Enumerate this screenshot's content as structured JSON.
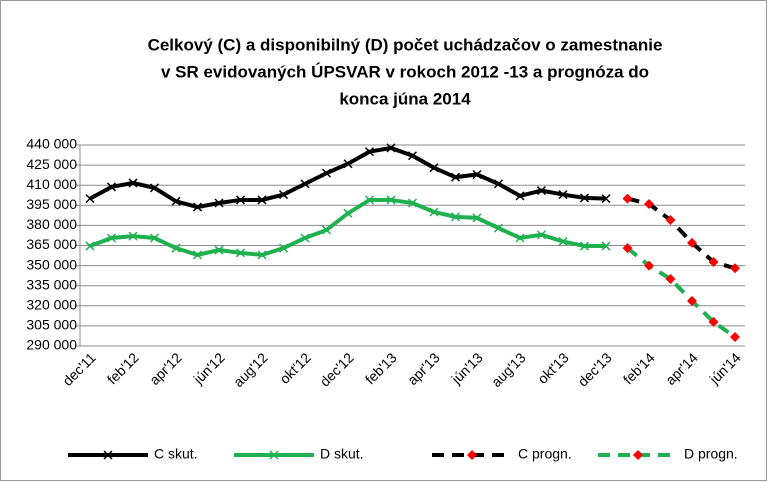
{
  "chart_data": {
    "type": "line",
    "title": [
      "Celkový (C) a disponibilný (D) počet uchádzačov  o zamestnanie",
      "v SR evidovaných ÚPSVAR v rokoch 2012  -13 a prognóza do",
      "konca júna 2014"
    ],
    "categories": [
      "dec'11",
      null,
      "feb'12",
      null,
      "apr'12",
      null,
      "jún'12",
      null,
      "aug'12",
      null,
      "okt'12",
      null,
      "dec'12",
      null,
      "feb'13",
      null,
      "apr'13",
      null,
      "jún'13",
      null,
      "aug'13",
      null,
      "okt'13",
      null,
      "dec'13",
      null,
      "feb'14",
      null,
      "apr'14",
      null,
      "jún'14"
    ],
    "series": [
      {
        "name": "C skut.",
        "color": "#000000",
        "marker": "x",
        "marker_color": "#000000",
        "dashed": false,
        "values": [
          400000,
          408700,
          411700,
          408000,
          398000,
          393700,
          396700,
          399000,
          399000,
          403000,
          411000,
          419000,
          426000,
          435000,
          437800,
          432000,
          423000,
          416000,
          418000,
          411000,
          402000,
          406000,
          403000,
          400500,
          400000,
          null,
          null,
          null,
          null,
          null,
          null
        ]
      },
      {
        "name": "D skut.",
        "color": "#1fb050",
        "marker": "x",
        "marker_color": "#1fb050",
        "dashed": false,
        "values": [
          364600,
          370600,
          372000,
          370600,
          363000,
          358000,
          361600,
          359500,
          358000,
          363000,
          370600,
          376600,
          389000,
          399000,
          399000,
          396700,
          390000,
          386400,
          385600,
          378000,
          370600,
          373000,
          368000,
          364600,
          364600,
          null,
          null,
          null,
          null,
          null,
          null
        ]
      },
      {
        "name": "C progn.",
        "color": "#000000",
        "marker": "diamond",
        "marker_color": "#ff0000",
        "dashed": true,
        "values": [
          null,
          null,
          null,
          null,
          null,
          null,
          null,
          null,
          null,
          null,
          null,
          null,
          null,
          null,
          null,
          null,
          null,
          null,
          null,
          null,
          null,
          null,
          null,
          null,
          null,
          400000,
          396000,
          384000,
          367000,
          352700,
          348000
        ]
      },
      {
        "name": "D progn.",
        "color": "#1fb050",
        "marker": "diamond",
        "marker_color": "#ff0000",
        "dashed": true,
        "values": [
          null,
          null,
          null,
          null,
          null,
          null,
          null,
          null,
          null,
          null,
          null,
          null,
          null,
          null,
          null,
          null,
          null,
          null,
          null,
          null,
          null,
          null,
          null,
          null,
          null,
          363000,
          350000,
          340000,
          323600,
          308000,
          296700
        ]
      }
    ],
    "ylim": [
      290000,
      440000
    ],
    "yticks": [
      {
        "value": 290000,
        "label": "290 000"
      },
      {
        "value": 305000,
        "label": "305 000"
      },
      {
        "value": 320000,
        "label": "320 000"
      },
      {
        "value": 335000,
        "label": "335 000"
      },
      {
        "value": 350000,
        "label": "350 000"
      },
      {
        "value": 365000,
        "label": "365 000"
      },
      {
        "value": 380000,
        "label": "380 000"
      },
      {
        "value": 395000,
        "label": "395 000"
      },
      {
        "value": 410000,
        "label": "410 000"
      },
      {
        "value": 425000,
        "label": "425 000"
      },
      {
        "value": 440000,
        "label": "440 000"
      }
    ],
    "grid": true,
    "legend": "bottom"
  }
}
